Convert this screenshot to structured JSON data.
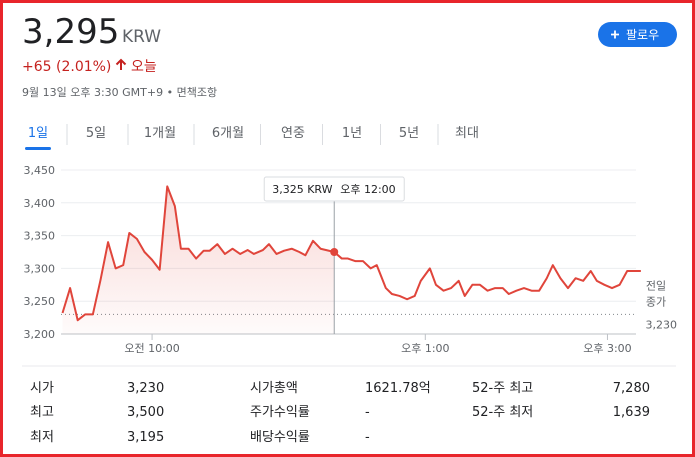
{
  "header": {
    "price": "3,295",
    "currency": "KRW",
    "change": "+65 (2.01%)",
    "period": "오늘",
    "timestamp": "9월 13일 오후 3:30 GMT+9",
    "disclaimer": "면책조항",
    "follow_button": "팔로우"
  },
  "tabs": {
    "items": [
      "1일",
      "5일",
      "1개월",
      "6개월",
      "연중",
      "1년",
      "5년",
      "최대"
    ],
    "selected": "1일"
  },
  "chart_data": {
    "type": "line",
    "color": "#e0453b",
    "x": [
      "09:01",
      "09:06",
      "09:11",
      "09:16",
      "09:21",
      "09:26",
      "09:31",
      "09:36",
      "09:41",
      "09:45",
      "09:50",
      "09:55",
      "10:00",
      "10:05",
      "10:10",
      "10:15",
      "10:19",
      "10:24",
      "10:29",
      "10:34",
      "10:38",
      "10:43",
      "10:48",
      "10:53",
      "10:58",
      "11:03",
      "11:07",
      "11:13",
      "11:17",
      "11:22",
      "11:27",
      "11:32",
      "11:37",
      "11:41",
      "11:46",
      "11:51",
      "12:00",
      "12:05",
      "12:09",
      "12:14",
      "12:19",
      "12:24",
      "12:28",
      "12:34",
      "12:38",
      "12:43",
      "12:48",
      "12:53",
      "12:57",
      "13:03",
      "13:07",
      "13:12",
      "13:17",
      "13:22",
      "13:26",
      "13:31",
      "13:36",
      "13:41",
      "13:46",
      "13:51",
      "13:55",
      "14:00",
      "14:05",
      "14:10",
      "14:15",
      "14:20",
      "14:24",
      "14:29",
      "14:34",
      "14:39",
      "14:44",
      "14:49",
      "14:53",
      "14:58",
      "15:03",
      "15:08",
      "15:13",
      "15:17",
      "15:22"
    ],
    "values": [
      3232,
      3270,
      3221,
      3230,
      3230,
      3282,
      3340,
      3300,
      3305,
      3354,
      3345,
      3325,
      3313,
      3298,
      3425,
      3395,
      3330,
      3330,
      3315,
      3327,
      3327,
      3337,
      3322,
      3330,
      3322,
      3328,
      3322,
      3328,
      3337,
      3322,
      3327,
      3330,
      3325,
      3320,
      3342,
      3330,
      3325,
      3315,
      3315,
      3311,
      3311,
      3300,
      3305,
      3270,
      3261,
      3258,
      3253,
      3258,
      3281,
      3300,
      3275,
      3266,
      3270,
      3281,
      3258,
      3275,
      3275,
      3266,
      3270,
      3270,
      3261,
      3266,
      3270,
      3266,
      3266,
      3285,
      3305,
      3285,
      3270,
      3285,
      3281,
      3296,
      3281,
      3275,
      3270,
      3275,
      3296,
      3296,
      3296
    ],
    "xlim": [
      "09:00",
      "15:30"
    ],
    "xticks": [
      {
        "value": "10:00",
        "label": "오전 10:00"
      },
      {
        "value": "13:00",
        "label": "오후 1:00"
      },
      {
        "value": "15:00",
        "label": "오후 3:00"
      }
    ],
    "ylim": [
      3200,
      3460
    ],
    "yticks": [
      {
        "value": 3200,
        "label": "3,200"
      },
      {
        "value": 3250,
        "label": "3,250"
      },
      {
        "value": 3300,
        "label": "3,300"
      },
      {
        "value": 3350,
        "label": "3,350"
      },
      {
        "value": 3400,
        "label": "3,400"
      },
      {
        "value": 3450,
        "label": "3,450"
      }
    ],
    "grid": true,
    "previous_close": {
      "lines": [
        "전일",
        "종가"
      ],
      "value": 3230,
      "value_label": "3,230"
    },
    "tooltip": {
      "x": "12:00",
      "label": "3,325 KRW",
      "time": "오후 12:00"
    }
  },
  "stats": {
    "rows": [
      [
        [
          "시가",
          "3,230"
        ],
        [
          "시가총액",
          "1621.78억"
        ],
        [
          "52-주 최고",
          "7,280"
        ]
      ],
      [
        [
          "최고",
          "3,500"
        ],
        [
          "주가수익률",
          "-"
        ],
        [
          "52-주 최저",
          "1,639"
        ]
      ],
      [
        [
          "최저",
          "3,195"
        ],
        [
          "배당수익률",
          "-"
        ]
      ]
    ]
  }
}
